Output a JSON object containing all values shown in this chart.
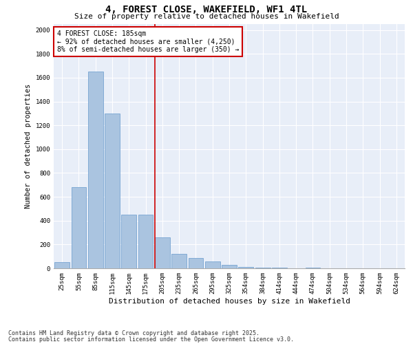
{
  "title": "4, FOREST CLOSE, WAKEFIELD, WF1 4TL",
  "subtitle": "Size of property relative to detached houses in Wakefield",
  "xlabel": "Distribution of detached houses by size in Wakefield",
  "ylabel": "Number of detached properties",
  "categories": [
    "25sqm",
    "55sqm",
    "85sqm",
    "115sqm",
    "145sqm",
    "175sqm",
    "205sqm",
    "235sqm",
    "265sqm",
    "295sqm",
    "325sqm",
    "354sqm",
    "384sqm",
    "414sqm",
    "444sqm",
    "474sqm",
    "504sqm",
    "534sqm",
    "564sqm",
    "594sqm",
    "624sqm"
  ],
  "values": [
    50,
    680,
    1650,
    1300,
    450,
    450,
    260,
    120,
    85,
    55,
    30,
    12,
    8,
    5,
    0,
    5,
    0,
    0,
    0,
    0,
    0
  ],
  "bar_color": "#aac4e0",
  "bar_edge_color": "#6699cc",
  "property_line_color": "#cc0000",
  "annotation_text": "4 FOREST CLOSE: 185sqm\n← 92% of detached houses are smaller (4,250)\n8% of semi-detached houses are larger (350) →",
  "annotation_box_color": "#cc0000",
  "ylim": [
    0,
    2050
  ],
  "yticks": [
    0,
    200,
    400,
    600,
    800,
    1000,
    1200,
    1400,
    1600,
    1800,
    2000
  ],
  "background_color": "#e8eef8",
  "footnote1": "Contains HM Land Registry data © Crown copyright and database right 2025.",
  "footnote2": "Contains public sector information licensed under the Open Government Licence v3.0.",
  "title_fontsize": 10,
  "subtitle_fontsize": 8,
  "xlabel_fontsize": 8,
  "ylabel_fontsize": 7.5,
  "tick_fontsize": 6.5,
  "annotation_fontsize": 7,
  "footnote_fontsize": 6
}
